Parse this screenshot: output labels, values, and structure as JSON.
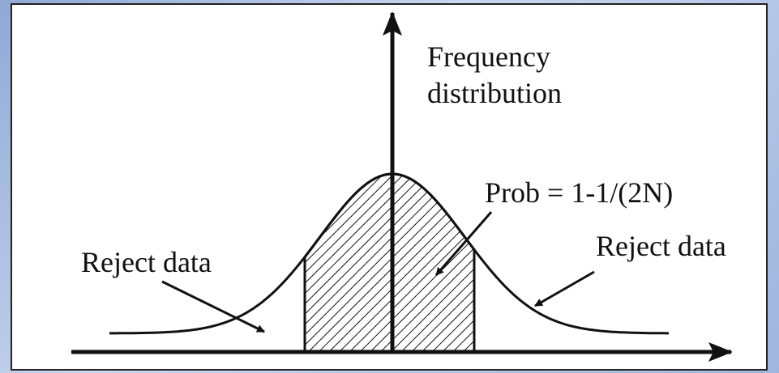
{
  "labels": {
    "axis_label": [
      "Frequency",
      "distribution"
    ],
    "center": "Prob = 1-1/(2N)",
    "left": "Reject data",
    "right": "Reject data"
  }
}
